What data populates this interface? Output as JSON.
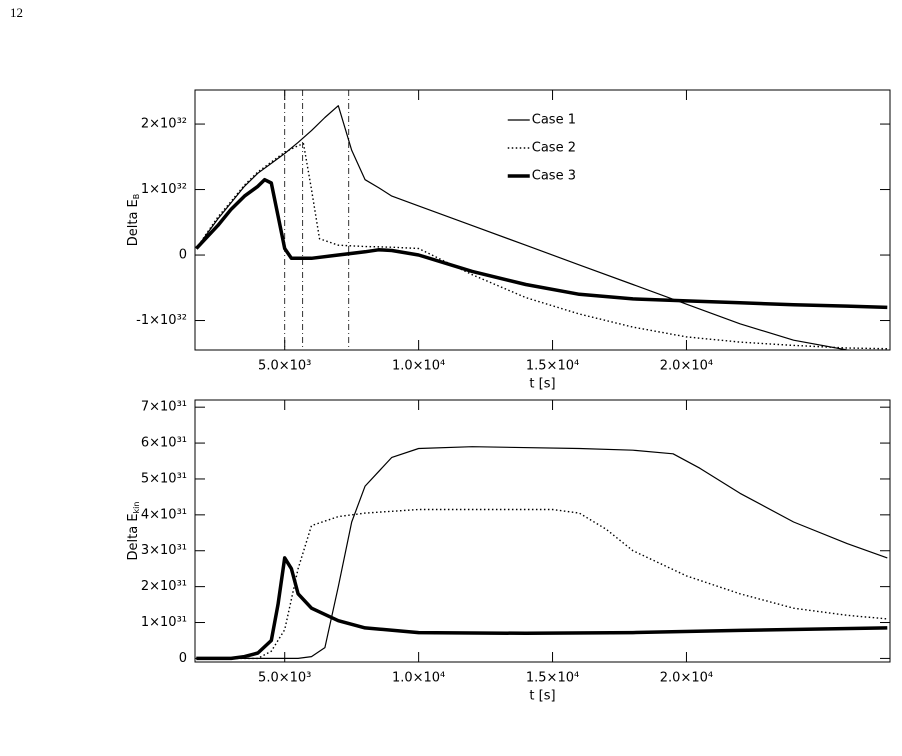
{
  "page_number": "12",
  "chart_data": [
    {
      "type": "line",
      "ylabel": "Delta E",
      "ylabel_subscript": "B",
      "xlabel": "t [s]",
      "xlim": [
        1650,
        27600
      ],
      "ylim": [
        -1.45e+32,
        2.52e+32
      ],
      "xticks": [
        {
          "value": 5000,
          "label": "5.0×10³"
        },
        {
          "value": 10000,
          "label": "1.0×10⁴"
        },
        {
          "value": 15000,
          "label": "1.5×10⁴"
        },
        {
          "value": 20000,
          "label": "2.0×10⁴"
        }
      ],
      "yticks": [
        {
          "value": -1e+32,
          "label": "-1×10³²"
        },
        0,
        {
          "value": 1e+32,
          "label": "1×10³²"
        },
        {
          "value": 2e+32,
          "label": "2×10³²"
        }
      ],
      "vlines": [
        5000,
        5670,
        7390
      ],
      "legend": "top",
      "series": [
        {
          "name": "Case 1",
          "color": "#000000",
          "dash": "solid",
          "width": 1.2,
          "x": [
            1700,
            2500,
            3000,
            3500,
            4000,
            4500,
            5000,
            5500,
            6000,
            6500,
            7000,
            7500,
            8000,
            8500,
            9000,
            10000,
            12000,
            14000,
            16000,
            18000,
            20000,
            22000,
            24000,
            26000,
            27500
          ],
          "values": [
            1e+31,
            5.5e+31,
            8e+31,
            1.05e+32,
            1.25e+32,
            1.4e+32,
            1.55e+32,
            1.72e+32,
            1.9e+32,
            2.1e+32,
            2.28e+32,
            1.6e+32,
            1.15e+32,
            1.03e+32,
            9e+31,
            7.5e+31,
            4.5e+31,
            1.5e+31,
            -1.5e+31,
            -4.5e+31,
            -7.5e+31,
            -1.05e+32,
            -1.3e+32,
            -1.45e+32,
            -1.47e+32
          ]
        },
        {
          "name": "Case 2",
          "color": "#000000",
          "dash": "dotted",
          "width": 1.4,
          "x": [
            1700,
            2500,
            3000,
            3500,
            4000,
            4500,
            5000,
            5500,
            5700,
            6000,
            6300,
            7000,
            8000,
            9000,
            10000,
            12000,
            14000,
            16000,
            18000,
            20000,
            22000,
            24000,
            26000,
            27500
          ],
          "values": [
            1e+31,
            5.8e+31,
            8.2e+31,
            1.07e+32,
            1.27e+32,
            1.42e+32,
            1.57e+32,
            1.67e+32,
            1.7e+32,
            1e+32,
            2.5e+31,
            1.5e+31,
            1.3e+31,
            1.2e+31,
            1e+31,
            -3e+31,
            -6.5e+31,
            -9e+31,
            -1.1e+32,
            -1.25e+32,
            -1.33e+32,
            -1.38e+32,
            -1.42e+32,
            -1.43e+32
          ]
        },
        {
          "name": "Case 3",
          "color": "#000000",
          "dash": "solid",
          "width": 3.5,
          "x": [
            1700,
            2500,
            3000,
            3500,
            4000,
            4250,
            4500,
            4750,
            5000,
            5250,
            5500,
            6000,
            7000,
            8000,
            8500,
            9000,
            10000,
            12000,
            14000,
            16000,
            18000,
            20000,
            22000,
            24000,
            26000,
            27500
          ],
          "values": [
            1e+31,
            4.5e+31,
            7e+31,
            9e+31,
            1.05e+32,
            1.15e+32,
            1.1e+32,
            6e+31,
            1e+31,
            -5e+30,
            -5e+30,
            -5e+30,
            0,
            5e+30,
            8e+30,
            7e+30,
            0,
            -2.5e+31,
            -4.5e+31,
            -6e+31,
            -6.7e+31,
            -7e+31,
            -7.3e+31,
            -7.6e+31,
            -7.8e+31,
            -8e+31
          ]
        }
      ]
    },
    {
      "type": "line",
      "ylabel": "Delta E",
      "ylabel_subscript": "kin",
      "xlabel": "t [s]",
      "xlim": [
        1650,
        27600
      ],
      "ylim": [
        -1e+30,
        7.2e+31
      ],
      "xticks": [
        {
          "value": 5000,
          "label": "5.0×10³"
        },
        {
          "value": 10000,
          "label": "1.0×10⁴"
        },
        {
          "value": 15000,
          "label": "1.5×10⁴"
        },
        {
          "value": 20000,
          "label": "2.0×10⁴"
        }
      ],
      "yticks": [
        0,
        {
          "value": 1e+31,
          "label": "1×10³¹"
        },
        {
          "value": 2e+31,
          "label": "2×10³¹"
        },
        {
          "value": 3e+31,
          "label": "3×10³¹"
        },
        {
          "value": 4e+31,
          "label": "4×10³¹"
        },
        {
          "value": 5e+31,
          "label": "5×10³¹"
        },
        {
          "value": 6e+31,
          "label": "6×10³¹"
        },
        {
          "value": 7e+31,
          "label": "7×10³¹"
        }
      ],
      "series": [
        {
          "color": "#000000",
          "dash": "solid",
          "width": 1.2,
          "x": [
            1700,
            5500,
            6000,
            6500,
            7000,
            7500,
            8000,
            9000,
            10000,
            12000,
            16000,
            18000,
            19500,
            20500,
            22000,
            24000,
            26000,
            27500
          ],
          "values": [
            0,
            0,
            5e+29,
            3e+30,
            2e+31,
            3.8e+31,
            4.8e+31,
            5.6e+31,
            5.85e+31,
            5.9e+31,
            5.85e+31,
            5.8e+31,
            5.7e+31,
            5.3e+31,
            4.6e+31,
            3.8e+31,
            3.2e+31,
            2.8e+31
          ]
        },
        {
          "color": "#000000",
          "dash": "dotted",
          "width": 1.4,
          "x": [
            1700,
            4000,
            4500,
            5000,
            5500,
            6000,
            7000,
            8000,
            10000,
            12000,
            15000,
            16000,
            17000,
            18000,
            20000,
            22000,
            24000,
            26000,
            27500
          ],
          "values": [
            0,
            0,
            2e+30,
            8e+30,
            2.5e+31,
            3.7e+31,
            3.95e+31,
            4.05e+31,
            4.15e+31,
            4.15e+31,
            4.15e+31,
            4.05e+31,
            3.6e+31,
            3e+31,
            2.3e+31,
            1.8e+31,
            1.4e+31,
            1.2e+31,
            1.1e+31
          ]
        },
        {
          "color": "#000000",
          "dash": "solid",
          "width": 3.5,
          "x": [
            1700,
            3000,
            3500,
            4000,
            4500,
            4750,
            5000,
            5250,
            5500,
            6000,
            7000,
            8000,
            10000,
            14000,
            18000,
            22000,
            27500
          ],
          "values": [
            0,
            0,
            5e+29,
            1.5e+30,
            5e+30,
            1.5e+31,
            2.8e+31,
            2.5e+31,
            1.8e+31,
            1.4e+31,
            1.05e+31,
            8.5e+30,
            7.2e+30,
            7e+30,
            7.2e+30,
            7.8e+30,
            8.5e+30
          ]
        }
      ]
    }
  ]
}
